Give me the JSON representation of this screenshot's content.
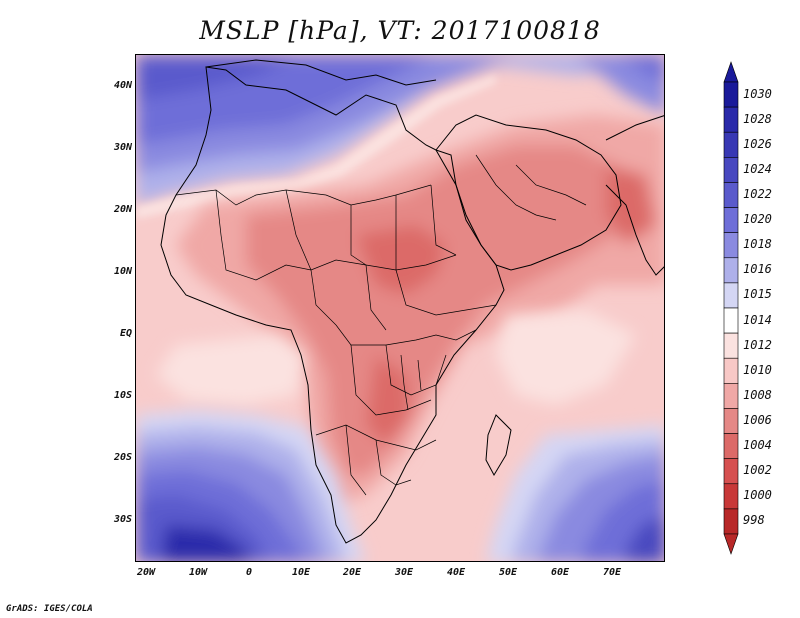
{
  "title": "MSLP [hPa], VT: 2017100818",
  "lat_labels": [
    "40N",
    "30N",
    "20N",
    "10N",
    "EQ",
    "10S",
    "20S",
    "30S"
  ],
  "lon_labels": [
    "20W",
    "10W",
    "0",
    "10E",
    "20E",
    "30E",
    "40E",
    "50E",
    "60E",
    "70E"
  ],
  "colorbar": {
    "levels": [
      "1030",
      "1028",
      "1026",
      "1024",
      "1022",
      "1020",
      "1018",
      "1016",
      "1015",
      "1014",
      "1012",
      "1010",
      "1008",
      "1006",
      "1004",
      "1002",
      "1000",
      "998"
    ],
    "colors": [
      "#1a1a9a",
      "#2a2aaa",
      "#3838b4",
      "#4848c0",
      "#5a5acc",
      "#6e6ed8",
      "#8a8ae0",
      "#aeb0ea",
      "#d4d6f4",
      "#ffffff",
      "#fbe2e0",
      "#f8c8c6",
      "#f0a8a6",
      "#e58886",
      "#dc6a68",
      "#d65050",
      "#c83838",
      "#b82828"
    ]
  },
  "credit": "GrADS: IGES/COLA"
}
